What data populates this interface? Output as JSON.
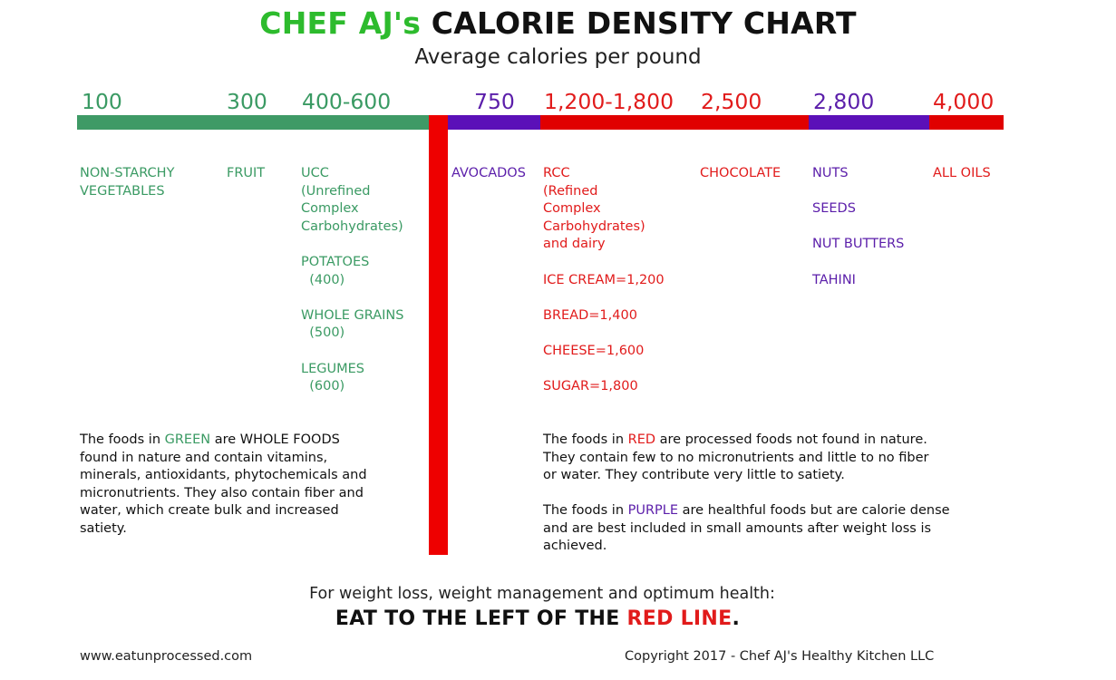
{
  "title": {
    "brand": "CHEF AJ's",
    "rest": "CALORIE DENSITY CHART"
  },
  "subtitle": "Average calories per pound",
  "scale": {
    "labels": [
      "100",
      "300",
      "400-600",
      "750",
      "1,200-1,800",
      "2,500",
      "2,800",
      "4,000"
    ]
  },
  "colors": {
    "green": "#3a9a63",
    "red": "#e11b1b",
    "purple": "#5b1eaa",
    "bar_green": "#3f9a66",
    "bar_red": "#e00000",
    "bar_purple": "#5b10b8"
  },
  "categories": {
    "non_starchy": [
      "NON-STARCHY",
      "VEGETABLES"
    ],
    "fruit": [
      "FRUIT"
    ],
    "ucc": [
      "UCC",
      "(Unrefined",
      "Complex",
      "Carbohydrates)",
      "",
      "POTATOES",
      "  (400)",
      "",
      "WHOLE GRAINS",
      "  (500)",
      "",
      "LEGUMES",
      "  (600)"
    ],
    "avocados": [
      "AVOCADOS"
    ],
    "rcc": [
      "RCC",
      "(Refined",
      "Complex",
      "Carbohydrates)",
      "and dairy",
      "",
      "ICE CREAM=1,200",
      "",
      "BREAD=1,400",
      "",
      "CHEESE=1,600",
      "",
      "SUGAR=1,800"
    ],
    "chocolate": [
      "CHOCOLATE"
    ],
    "nuts": [
      "NUTS",
      "",
      "SEEDS",
      "",
      "NUT BUTTERS",
      "",
      "TAHINI"
    ],
    "oils": [
      "ALL OILS"
    ]
  },
  "notes": {
    "green": {
      "prefix": "The foods in ",
      "word": "GREEN",
      "line1_rest": " are WHOLE FOODS",
      "lines": [
        "found in nature and contain vitamins,",
        "minerals, antioxidants, phytochemicals and",
        "micronutrients. They also contain fiber and",
        "water, which create bulk and increased",
        "satiety."
      ]
    },
    "red": {
      "prefix": "The foods in ",
      "word": "RED",
      "line1_rest": " are processed foods not found in nature.",
      "lines": [
        "They contain few to no micronutrients and little to no fiber",
        "or water. They contribute very little to satiety."
      ]
    },
    "purple": {
      "prefix": "The foods in ",
      "word": "PURPLE",
      "line1_rest": " are healthful foods but are calorie dense",
      "lines": [
        "and are best included in small amounts after weight loss is",
        "achieved."
      ]
    }
  },
  "footer": {
    "advice": "For weight loss, weight management and optimum health:",
    "cta_black": "EAT TO THE LEFT OF THE ",
    "cta_red": "RED LINE",
    "cta_end": ".",
    "website": "www.eatunprocessed.com",
    "copyright": "Copyright 2017 - Chef AJ's Healthy Kitchen LLC"
  }
}
